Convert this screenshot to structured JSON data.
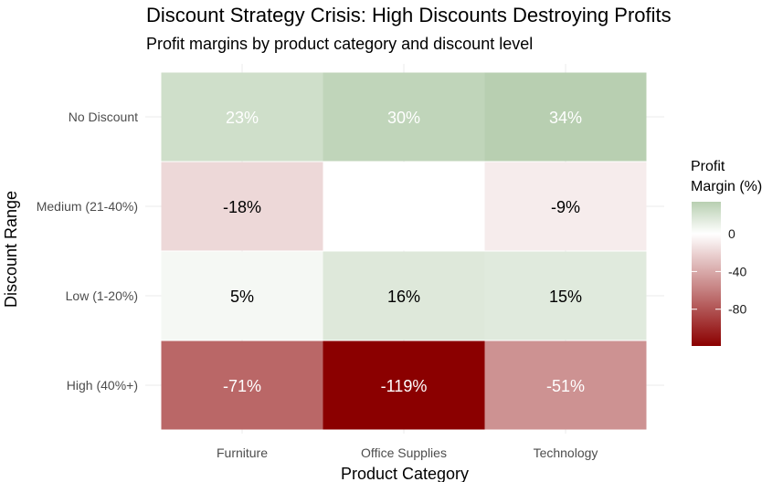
{
  "chart_data": {
    "type": "heatmap",
    "title": "Discount Strategy Crisis: High Discounts Destroying Profits",
    "subtitle": "Profit margins by product category and discount level",
    "xlabel": "Product Category",
    "ylabel": "Discount Range",
    "x_categories": [
      "Furniture",
      "Office Supplies",
      "Technology"
    ],
    "y_categories": [
      "No Discount",
      "Medium (21-40%)",
      "Low (1-20%)",
      "High (40%+)"
    ],
    "cells": [
      {
        "x": "Furniture",
        "y": "No Discount",
        "value": 23,
        "label": "23%"
      },
      {
        "x": "Office Supplies",
        "y": "No Discount",
        "value": 30,
        "label": "30%"
      },
      {
        "x": "Technology",
        "y": "No Discount",
        "value": 34,
        "label": "34%"
      },
      {
        "x": "Furniture",
        "y": "Medium (21-40%)",
        "value": -18,
        "label": "-18%"
      },
      {
        "x": "Office Supplies",
        "y": "Medium (21-40%)",
        "value": 0,
        "label": ""
      },
      {
        "x": "Technology",
        "y": "Medium (21-40%)",
        "value": -9,
        "label": "-9%"
      },
      {
        "x": "Furniture",
        "y": "Low (1-20%)",
        "value": 5,
        "label": "5%"
      },
      {
        "x": "Office Supplies",
        "y": "Low (1-20%)",
        "value": 16,
        "label": "16%"
      },
      {
        "x": "Technology",
        "y": "Low (1-20%)",
        "value": 15,
        "label": "15%"
      },
      {
        "x": "Furniture",
        "y": "High (40%+)",
        "value": -71,
        "label": "-71%"
      },
      {
        "x": "Office Supplies",
        "y": "High (40%+)",
        "value": -119,
        "label": "-119%"
      },
      {
        "x": "Technology",
        "y": "High (40%+)",
        "value": -51,
        "label": "-51%"
      }
    ],
    "legend": {
      "title_lines": [
        "Profit",
        "Margin (%)"
      ],
      "ticks": [
        0,
        -40,
        -80
      ],
      "tick_labels": [
        "0",
        "-40",
        "-80"
      ],
      "range": [
        -119,
        34
      ],
      "position": "right"
    },
    "colors": {
      "low": "#8b0000",
      "mid": "#ffffff",
      "high": "#b8cfb1",
      "label_light": "#ffffff",
      "label_dark": "#000000",
      "grid": "#ebebeb"
    },
    "grid": true
  }
}
